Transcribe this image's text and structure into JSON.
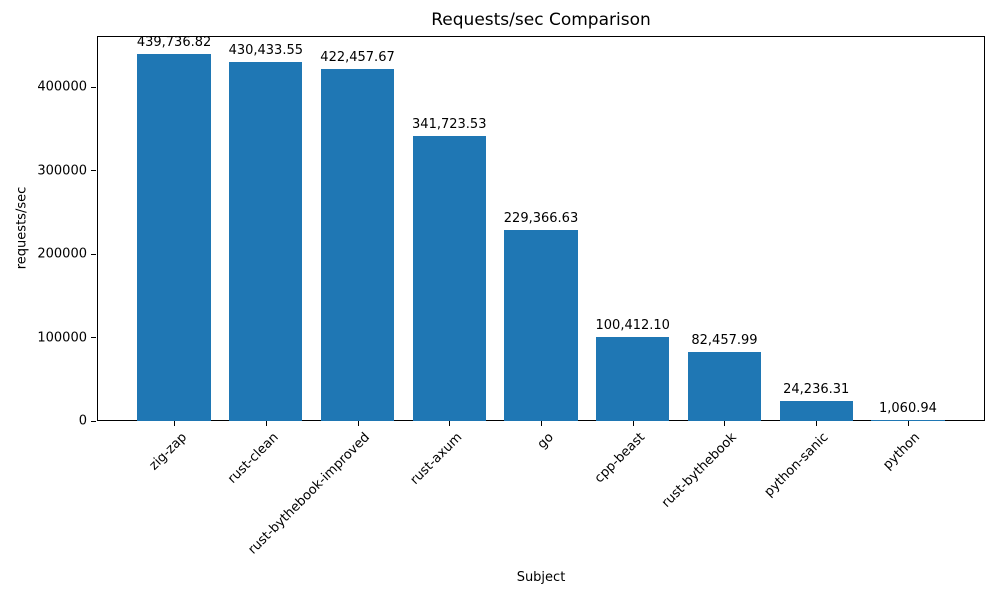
{
  "chart_data": {
    "type": "bar",
    "title": "Requests/sec Comparison",
    "xlabel": "Subject",
    "ylabel": "requests/sec",
    "categories": [
      "zig-zap",
      "rust-clean",
      "rust-bythebook-improved",
      "rust-axum",
      "go",
      "cpp-beast",
      "rust-bythebook",
      "python-sanic",
      "python"
    ],
    "values": [
      439736.82,
      430433.55,
      422457.67,
      341723.53,
      229366.63,
      100412.1,
      82457.99,
      24236.31,
      1060.94
    ],
    "value_labels": [
      "439,736.82",
      "430,433.55",
      "422,457.67",
      "341,723.53",
      "229,366.63",
      "100,412.10",
      "82,457.99",
      "24,236.31",
      "1,060.94"
    ],
    "yticks": [
      0,
      100000,
      200000,
      300000,
      400000
    ],
    "ytick_labels": [
      "0",
      "100000",
      "200000",
      "300000",
      "400000"
    ],
    "ylim": [
      0,
      461723.66
    ],
    "bar_color": "#1f77b4",
    "grid": false,
    "legend": null,
    "xtick_label_rotation_deg": 45
  }
}
